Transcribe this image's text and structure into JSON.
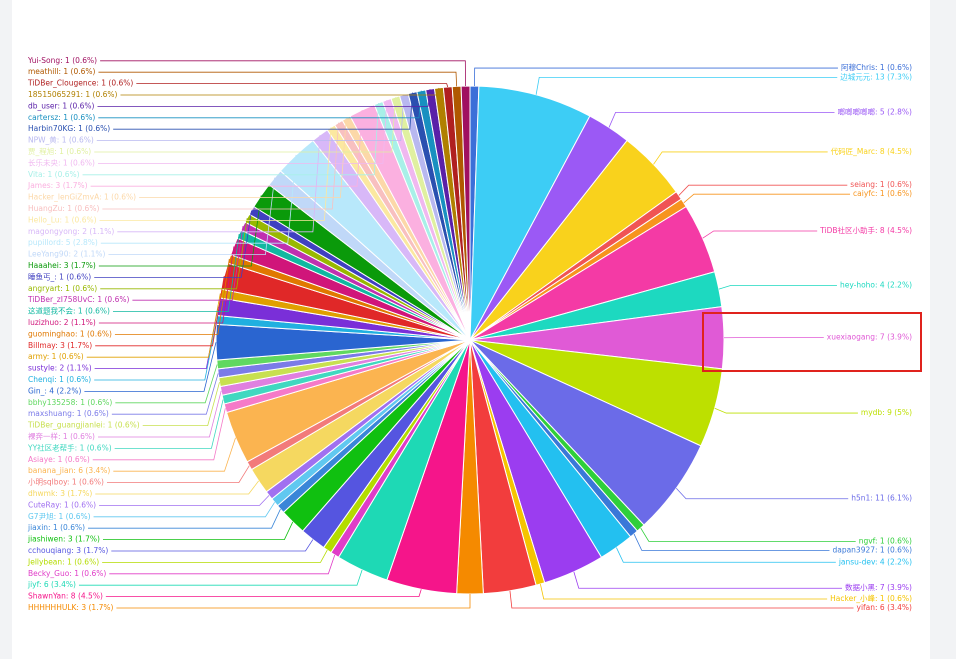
{
  "chart_data": {
    "type": "pie",
    "categories": [
      "阿穆Chris: 1 (0.6%)",
      "边城元元: 13 (7.3%)",
      "啷啷啷啷啷: 5 (2.8%)",
      "代码匠_Marc: 8 (4.5%)",
      "seiang: 1 (0.6%)",
      "caiyfc: 1 (0.6%)",
      "TiDB社区小助手: 8 (4.5%)",
      "hey-hoho: 4 (2.2%)",
      "xuexiaogang: 7 (3.9%)",
      "mydb: 9 (5%)",
      "h5n1: 11 (6.1%)",
      "ngvf: 1 (0.6%)",
      "dapan3927: 1 (0.6%)",
      "jansu-dev: 4 (2.2%)",
      "数据小黑: 7 (3.9%)",
      "Hacker_小峰: 1 (0.6%)",
      "yifan: 6 (3.4%)",
      "HHHHHHULK: 3 (1.7%)",
      "ShawnYan: 8 (4.5%)",
      "jiyf: 6 (3.4%)",
      "Becky_Guo: 1 (0.6%)",
      "Jellybean: 1 (0.6%)",
      "cchouqiang: 3 (1.7%)",
      "jiashiwen: 3 (1.7%)",
      "jiaxin: 1 (0.6%)",
      "G7尹旭: 1 (0.6%)",
      "CuteRay: 1 (0.6%)",
      "dhwmk: 3 (1.7%)",
      "小明sqlboy: 1 (0.6%)",
      "banana_jian: 6 (3.4%)",
      "Asiaye: 1 (0.6%)",
      "YY社区老帮手: 1 (0.6%)",
      "裸奔一样: 1 (0.6%)",
      "TiDBer_guangjianlei: 1 (0.6%)",
      "maxshuang: 1 (0.6%)",
      "bbhy135258: 1 (0.6%)",
      "Gin_: 4 (2.2%)",
      "Chenqi: 1 (0.6%)",
      "sustyle: 2 (1.1%)",
      "army: 1 (0.6%)",
      "Billmay: 3 (1.7%)",
      "guominghao: 1 (0.6%)",
      "luzizhuo: 2 (1.1%)",
      "这道题我不会: 1 (0.6%)",
      "TiDBer_zI758UvC: 1 (0.6%)",
      "angryart: 1 (0.6%)",
      "睡鱼丐_: 1 (0.6%)",
      "Haaahei: 3 (1.7%)",
      "LeeYang90: 2 (1.1%)",
      "pupillord: 5 (2.8%)",
      "magongyong: 2 (1.1%)",
      "Hello_Lu: 1 (0.6%)",
      "HuangZu: 1 (0.6%)",
      "Hacker_lenGiZmvA: 1 (0.6%)",
      "James: 3 (1.7%)",
      "Vita: 1 (0.6%)",
      "长乐未央: 1 (0.6%)",
      "贾_程旭: 1 (0.6%)",
      "NPW_黄: 1 (0.6%)",
      "Harbin70KG: 1 (0.6%)",
      "cartersz: 1 (0.6%)",
      "db_user: 1 (0.6%)",
      "18515065291: 1 (0.6%)",
      "TiDBer_Clougence: 1 (0.6%)",
      "meathill: 1 (0.6%)",
      "Yui-Song: 1 (0.6%)"
    ],
    "values": [
      1,
      13,
      5,
      8,
      1,
      1,
      8,
      4,
      7,
      9,
      11,
      1,
      1,
      4,
      7,
      1,
      6,
      3,
      8,
      6,
      1,
      1,
      3,
      3,
      1,
      1,
      1,
      3,
      1,
      6,
      1,
      1,
      1,
      1,
      1,
      1,
      4,
      1,
      2,
      1,
      3,
      1,
      2,
      1,
      1,
      1,
      1,
      3,
      2,
      5,
      2,
      1,
      1,
      1,
      3,
      1,
      1,
      1,
      1,
      1,
      1,
      1,
      1,
      1,
      1,
      1
    ],
    "colors": [
      "#3b6fd8",
      "#3dcdf5",
      "#9b59f5",
      "#f9d21c",
      "#f05454",
      "#f7941d",
      "#f43aa5",
      "#1dd9c0",
      "#e05ad6",
      "#bde000",
      "#6b6be8",
      "#2fcf3a",
      "#3a78d8",
      "#23c0f0",
      "#9b3df0",
      "#f5c400",
      "#f23d3d",
      "#f58a00",
      "#f5158a",
      "#1ed9b5",
      "#e03cc8",
      "#b4dc00",
      "#5555e0",
      "#10c010",
      "#3a86d8",
      "#60c8f0",
      "#a070f0",
      "#f5d860",
      "#f27a7a",
      "#fbb450",
      "#f57ac8",
      "#40d8c0",
      "#e080e0",
      "#c8e050",
      "#7b7be8",
      "#60d860",
      "#2a65d0",
      "#20b0e0",
      "#7a2fd8",
      "#e0a000",
      "#e02828",
      "#e07800",
      "#d0157a",
      "#10b8a0",
      "#c030b0",
      "#98b800",
      "#4040c0",
      "#0a9a0a",
      "#c0d8f8",
      "#b8e8fb",
      "#d8b8f8",
      "#fbe8a0",
      "#f8c0c0",
      "#fcd8a8",
      "#fbb0e0",
      "#a8f0e8",
      "#f0b8f0",
      "#e0f0a0",
      "#b8b8f0",
      "#2a50b0",
      "#1890c0",
      "#5a20a8",
      "#b08000",
      "#b02020",
      "#b05800",
      "#a01060"
    ]
  }
}
